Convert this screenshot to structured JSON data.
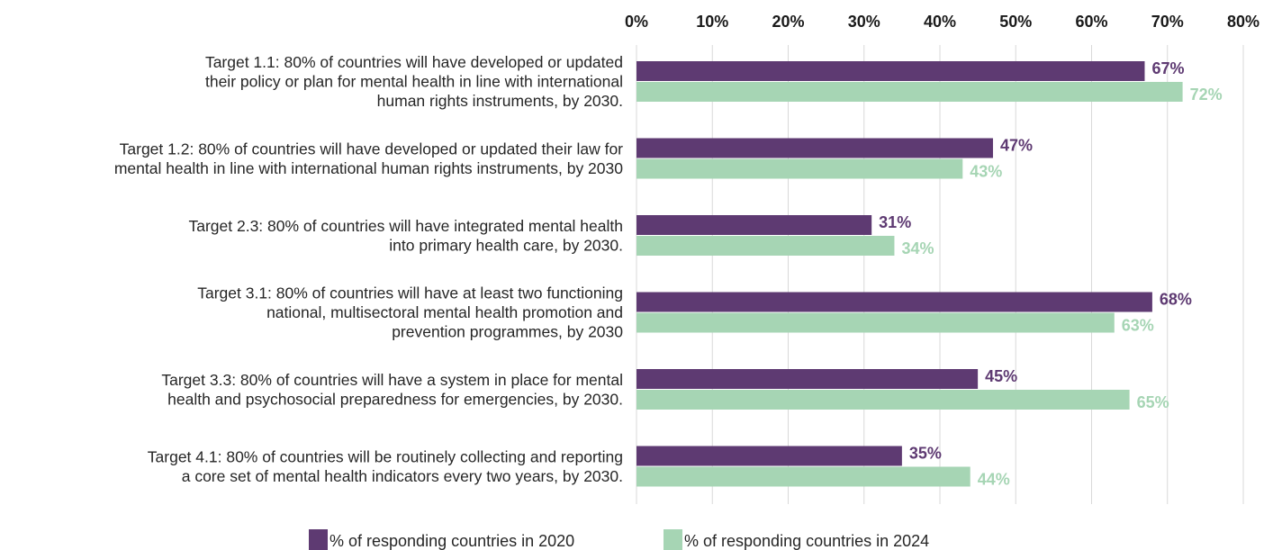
{
  "chart_data": {
    "type": "bar",
    "orientation": "horizontal",
    "categories": [
      [
        "Target 1.1: 80% of countries will have developed or updated",
        "their policy or plan for mental health in line with international",
        "human rights instruments, by 2030."
      ],
      [
        "Target 1.2: 80% of countries will have developed or updated their law for",
        "mental health in line with international human rights instruments, by 2030"
      ],
      [
        "Target 2.3: 80% of countries will have integrated mental health",
        "into primary health care, by 2030."
      ],
      [
        "Target 3.1: 80% of countries will have at least two functioning",
        "national, multisectoral mental health promotion and",
        "prevention programmes, by 2030"
      ],
      [
        "Target 3.3: 80% of countries will have a system in place for mental",
        "health and psychosocial preparedness for emergencies, by 2030."
      ],
      [
        "Target 4.1: 80% of countries will be routinely collecting and reporting",
        "a core set of mental health indicators every two years, by 2030."
      ]
    ],
    "series": [
      {
        "name": "% of responding countries in 2020",
        "color": "#5e3a72",
        "values": [
          67,
          47,
          31,
          68,
          45,
          35
        ],
        "labels": [
          "67%",
          "47%",
          "31%",
          "68%",
          "45%",
          "35%"
        ]
      },
      {
        "name": "% of responding countries in 2024",
        "color": "#a6d5b4",
        "values": [
          72,
          43,
          34,
          63,
          65,
          44
        ],
        "labels": [
          "72%",
          "43%",
          "34%",
          "63%",
          "65%",
          "44%"
        ]
      }
    ],
    "xlim": [
      0,
      80
    ],
    "xticks": [
      "0%",
      "10%",
      "20%",
      "30%",
      "40%",
      "50%",
      "60%",
      "70%",
      "80%"
    ],
    "xaxis_position": "top",
    "grid": true,
    "legend_position": "bottom-center"
  }
}
